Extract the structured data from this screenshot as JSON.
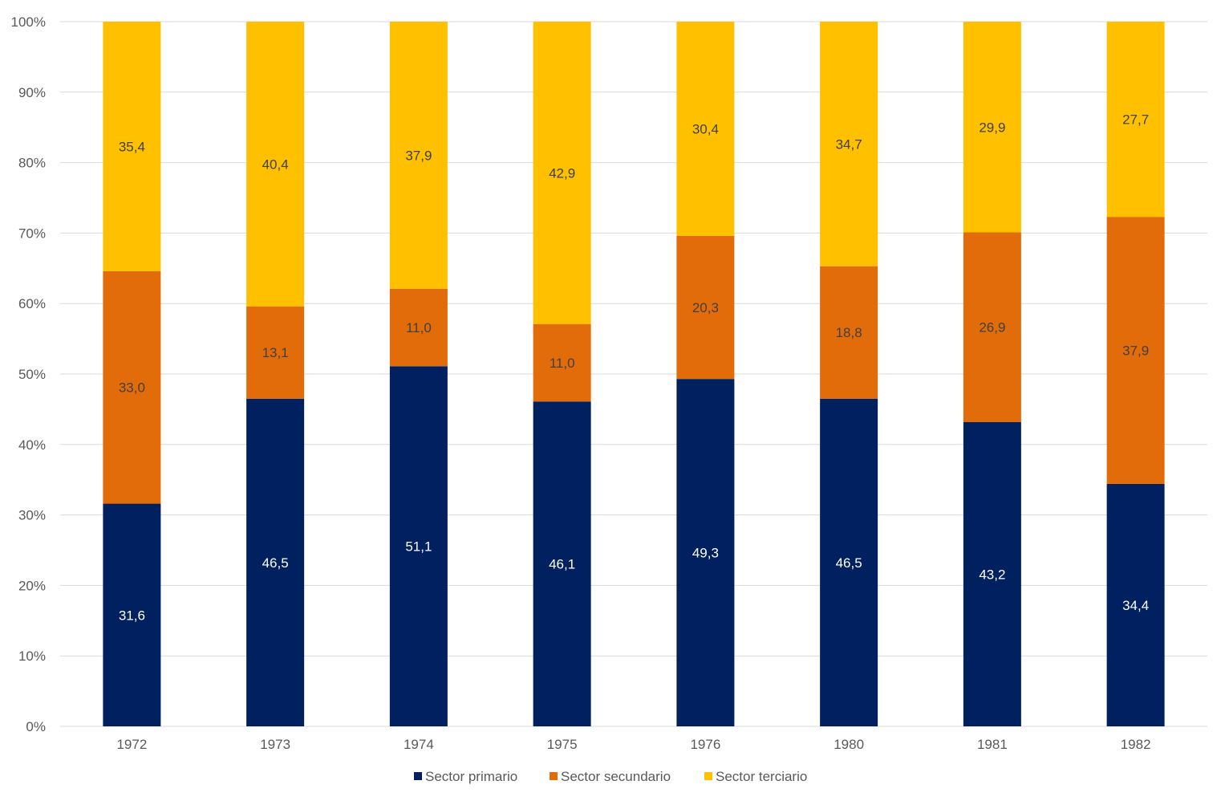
{
  "chart_data": {
    "type": "bar",
    "stacked": "percent",
    "title": "",
    "xlabel": "",
    "ylabel": "",
    "ylim": [
      0,
      100
    ],
    "y_ticks": [
      "0%",
      "10%",
      "20%",
      "30%",
      "40%",
      "50%",
      "60%",
      "70%",
      "80%",
      "90%",
      "100%"
    ],
    "grid": true,
    "legend_position": "bottom",
    "categories": [
      "1972",
      "1973",
      "1974",
      "1975",
      "1976",
      "1980",
      "1981",
      "1982"
    ],
    "series": [
      {
        "name": "Sector primario",
        "color": "#002060",
        "label_color": "#ffffff",
        "values": [
          31.6,
          46.5,
          51.1,
          46.1,
          49.3,
          46.5,
          43.2,
          34.4
        ],
        "labels": [
          "31,6",
          "46,5",
          "51,1",
          "46,1",
          "49,3",
          "46,5",
          "43,2",
          "34,4"
        ]
      },
      {
        "name": "Sector secundario",
        "color": "#E36C0A",
        "label_color": "#404040",
        "values": [
          33.0,
          13.1,
          11.0,
          11.0,
          20.3,
          18.8,
          26.9,
          37.9
        ],
        "labels": [
          "33,0",
          "13,1",
          "11,0",
          "11,0",
          "20,3",
          "18,8",
          "26,9",
          "37,9"
        ]
      },
      {
        "name": "Sector terciario",
        "color": "#FFC000",
        "label_color": "#404040",
        "values": [
          35.4,
          40.4,
          37.9,
          42.9,
          30.4,
          34.7,
          29.9,
          27.7
        ],
        "labels": [
          "35,4",
          "40,4",
          "37,9",
          "42,9",
          "30,4",
          "34,7",
          "29,9",
          "27,7"
        ]
      }
    ]
  }
}
